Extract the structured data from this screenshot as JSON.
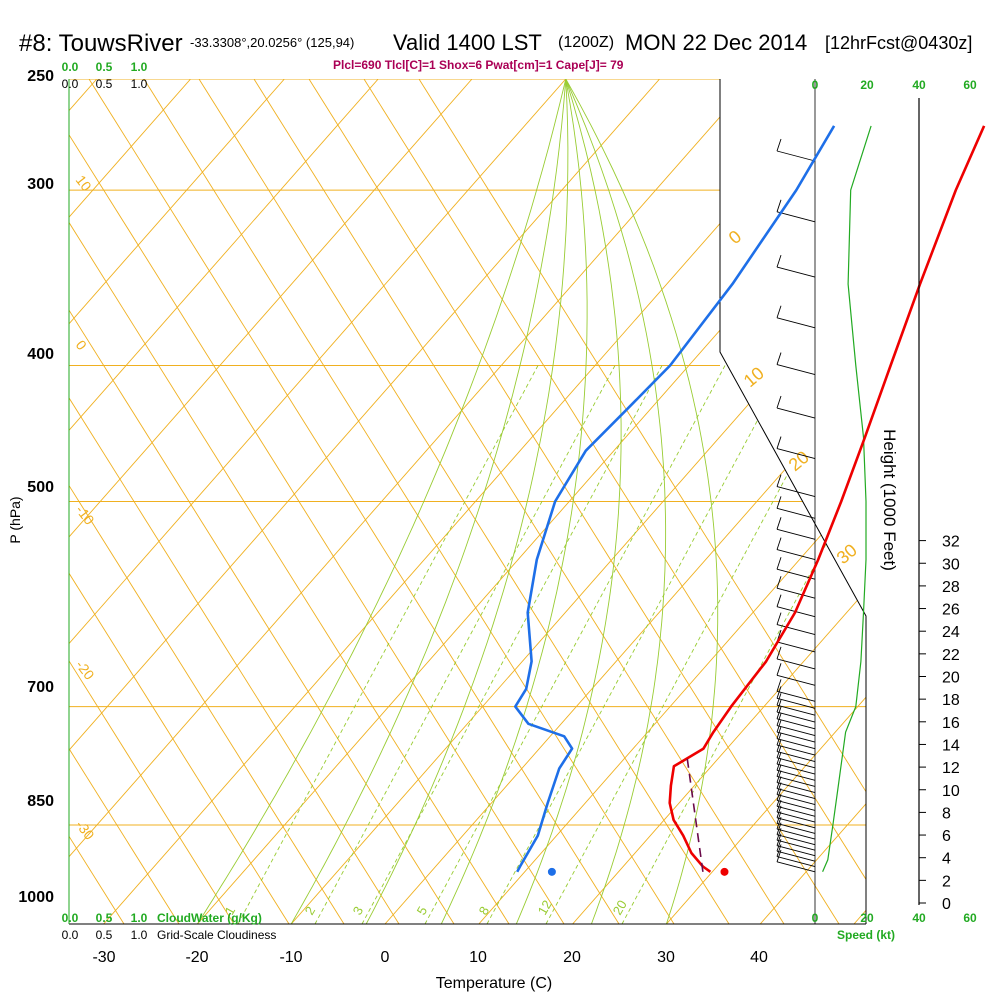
{
  "header": {
    "station": "#8: TouwsRiver",
    "coords": "-33.3308°,20.0256° (125,94)",
    "valid": "Valid 1400 LST",
    "zulu": "(1200Z)",
    "date": "MON 22 Dec 2014",
    "forecast": "[12hrFcst@0430z]",
    "indices": "Plcl=690 Tlcl[C]=1 Shox=6 Pwat[cm]=1 Cape[J]= 79"
  },
  "colors": {
    "temperature": "#ee0000",
    "dewpoint": "#1e6fe8",
    "parcel": "#6a0a4a",
    "isotherm": "#f0b020",
    "dry_adiabat": "#f0b020",
    "moist_adiabat": "#99cc33",
    "mixing_ratio": "#99cc33",
    "wind_speed": "#22aa22",
    "top_scale": "#22aa22",
    "indices_text": "#aa0055"
  },
  "left_scales": {
    "cloudwater_ticks": [
      "0.0",
      "0.5",
      "1.0"
    ],
    "cloudiness_ticks": [
      "0.0",
      "0.5",
      "1.0"
    ],
    "cloudwater_label": "CloudWater (g/Kg)",
    "cloudiness_label": "Grid-Scale Cloudiness"
  },
  "speed_scale": {
    "ticks": [
      "0",
      "20",
      "40",
      "60"
    ],
    "label": "Speed (kt)"
  },
  "chart_data": {
    "type": "line",
    "subtype": "skew-T log-P sounding",
    "xlabel": "Temperature (C)",
    "ylabel": "P (hPa)",
    "y2label": "Height (1000 Feet)",
    "x_ticks": [
      "-30",
      "-20",
      "-10",
      "0",
      "10",
      "20",
      "30",
      "40"
    ],
    "p_ticks": [
      "250",
      "300",
      "400",
      "500",
      "700",
      "850",
      "1000"
    ],
    "height_ticks": [
      "0",
      "2",
      "4",
      "6",
      "8",
      "10",
      "12",
      "14",
      "16",
      "18",
      "20",
      "22",
      "24",
      "26",
      "28",
      "30",
      "32"
    ],
    "xlim": [
      -35,
      50
    ],
    "plim": [
      1000,
      250
    ],
    "dry_adiabat_labels": [
      "-10",
      "0",
      "10",
      "20",
      "30"
    ],
    "isotherm_labels": [
      "10",
      "0",
      "-10",
      "-20",
      "-30"
    ],
    "mixing_ratio_labels": [
      "1",
      "2",
      "3",
      "5",
      "8",
      "12",
      "20"
    ],
    "series": [
      {
        "name": "Temperature",
        "points": [
          [
            29.8,
            918
          ],
          [
            28.5,
            910
          ],
          [
            26.0,
            890
          ],
          [
            23.5,
            865
          ],
          [
            21.0,
            843
          ],
          [
            19.0,
            820
          ],
          [
            17.5,
            797
          ],
          [
            16.0,
            772
          ],
          [
            17.5,
            750
          ],
          [
            17.0,
            730
          ],
          [
            16.5,
            700
          ],
          [
            16.0,
            650
          ],
          [
            14.5,
            600
          ],
          [
            12.0,
            550
          ],
          [
            9.0,
            500
          ],
          [
            5.5,
            450
          ],
          [
            1.5,
            400
          ],
          [
            -3.0,
            350
          ],
          [
            -8.0,
            300
          ],
          [
            -11.0,
            270
          ]
        ]
      },
      {
        "name": "Dewpoint",
        "points": [
          [
            9.2,
            918
          ],
          [
            9.0,
            910
          ],
          [
            8.0,
            865
          ],
          [
            6.0,
            820
          ],
          [
            4.0,
            775
          ],
          [
            3.5,
            750
          ],
          [
            1.5,
            735
          ],
          [
            -3.5,
            720
          ],
          [
            -6.5,
            700
          ],
          [
            -7.0,
            680
          ],
          [
            -9.0,
            650
          ],
          [
            -14.0,
            600
          ],
          [
            -18.0,
            550
          ],
          [
            -21.5,
            500
          ],
          [
            -23.0,
            460
          ],
          [
            -22.5,
            430
          ],
          [
            -22.0,
            400
          ],
          [
            -23.0,
            350
          ],
          [
            -25.0,
            300
          ],
          [
            -27.0,
            270
          ]
        ]
      },
      {
        "name": "Parcel",
        "points": [
          [
            29.0,
            918
          ],
          [
            16.5,
            760
          ]
        ]
      }
    ],
    "surface": {
      "temperature": 31.3,
      "dewpoint": 12.9,
      "pressure": 918
    },
    "wind_speed": [
      [
        3,
        918
      ],
      [
        5,
        900
      ],
      [
        7,
        850
      ],
      [
        9,
        800
      ],
      [
        12,
        730
      ],
      [
        16,
        700
      ],
      [
        18,
        650
      ],
      [
        19,
        600
      ],
      [
        20,
        550
      ],
      [
        20,
        500
      ],
      [
        19,
        450
      ],
      [
        16,
        400
      ],
      [
        13,
        350
      ],
      [
        14,
        300
      ],
      [
        22,
        270
      ]
    ]
  }
}
